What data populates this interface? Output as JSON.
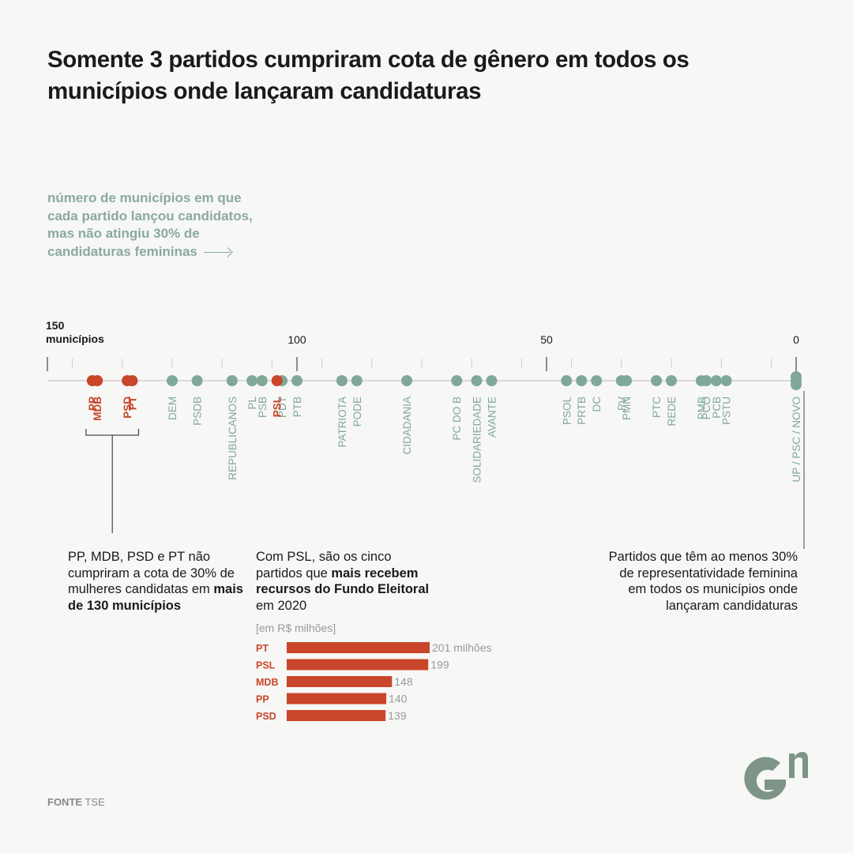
{
  "title": "Somente 3 partidos cumpriram cota de gênero em todos os municípios onde lançaram candidaturas",
  "subtitle": "número de municípios em que cada partido lançou candidatos, mas não atingiu 30% de candidaturas femininas",
  "source": {
    "label": "FONTE",
    "value": "TSE"
  },
  "colors": {
    "highlight": "#c9462a",
    "party": "#7fa898",
    "axis": "#bbbbbb",
    "muted": "#999999",
    "logo": "#7e9489"
  },
  "chart_data": [
    {
      "type": "scatter",
      "title": "",
      "xlabel": "",
      "ylabel": "",
      "x_axis": {
        "reversed": true,
        "xlim": [
          150,
          0
        ],
        "ticks": [
          150,
          100,
          50,
          0
        ],
        "tick_labels": [
          "150",
          "100",
          "50",
          "0"
        ],
        "first_tick_suffix": "municípios",
        "grid": false
      },
      "points": [
        {
          "label": "PP",
          "value": 141,
          "highlight": true
        },
        {
          "label": "MDB",
          "value": 140,
          "highlight": true
        },
        {
          "label": "PSD",
          "value": 134,
          "highlight": true
        },
        {
          "label": "PT",
          "value": 133,
          "highlight": true
        },
        {
          "label": "DEM",
          "value": 125,
          "highlight": false
        },
        {
          "label": "PSDB",
          "value": 120,
          "highlight": false
        },
        {
          "label": "REPUBLICANOS",
          "value": 113,
          "highlight": false
        },
        {
          "label": "PL",
          "value": 109,
          "highlight": false
        },
        {
          "label": "PSB",
          "value": 107,
          "highlight": false
        },
        {
          "label": "PSL",
          "value": 104,
          "highlight": true
        },
        {
          "label": "PDT",
          "value": 103,
          "highlight": false
        },
        {
          "label": "PTB",
          "value": 100,
          "highlight": false
        },
        {
          "label": "PATRIOTA",
          "value": 91,
          "highlight": false
        },
        {
          "label": "PODE",
          "value": 88,
          "highlight": false
        },
        {
          "label": "CIDADANIA",
          "value": 78,
          "highlight": false
        },
        {
          "label": "PC DO B",
          "value": 68,
          "highlight": false
        },
        {
          "label": "SOLIDARIEDADE",
          "value": 64,
          "highlight": false
        },
        {
          "label": "AVANTE",
          "value": 61,
          "highlight": false
        },
        {
          "label": "PSOL",
          "value": 46,
          "highlight": false
        },
        {
          "label": "PRTB",
          "value": 43,
          "highlight": false
        },
        {
          "label": "DC",
          "value": 40,
          "highlight": false
        },
        {
          "label": "PV",
          "value": 35,
          "highlight": false
        },
        {
          "label": "PMN",
          "value": 34,
          "highlight": false
        },
        {
          "label": "PTC",
          "value": 28,
          "highlight": false
        },
        {
          "label": "REDE",
          "value": 25,
          "highlight": false
        },
        {
          "label": "PMB",
          "value": 19,
          "highlight": false
        },
        {
          "label": "PCO",
          "value": 18,
          "highlight": false
        },
        {
          "label": "PCB",
          "value": 16,
          "highlight": false
        },
        {
          "label": "PSTU",
          "value": 14,
          "highlight": false
        },
        {
          "label": "UP / PSC / NOVO",
          "value": 0,
          "highlight": false
        }
      ]
    },
    {
      "type": "bar",
      "title": "",
      "unit_label": "[em R$ milhões]",
      "orientation": "horizontal",
      "categories": [
        "PT",
        "PSL",
        "MDB",
        "PP",
        "PSD"
      ],
      "values": [
        201,
        199,
        148,
        140,
        139
      ],
      "value_labels": [
        "201 milhões",
        "199",
        "148",
        "140",
        "139"
      ],
      "xlim": [
        0,
        201
      ]
    }
  ],
  "notes": {
    "big4": {
      "text": "PP, MDB, PSD e PT não cumpriram a cota de 30% de mulheres candidatas em ",
      "bold": "mais de 130 municípios"
    },
    "psl": {
      "text1": "Com PSL, são os cinco partidos que ",
      "bold": "mais recebem recursos do Fundo Eleitoral",
      "text2": " em 2020"
    },
    "women": "Partidos que têm ao menos 30% de representatividade feminina em todos os municípios onde lançaram candidaturas"
  }
}
